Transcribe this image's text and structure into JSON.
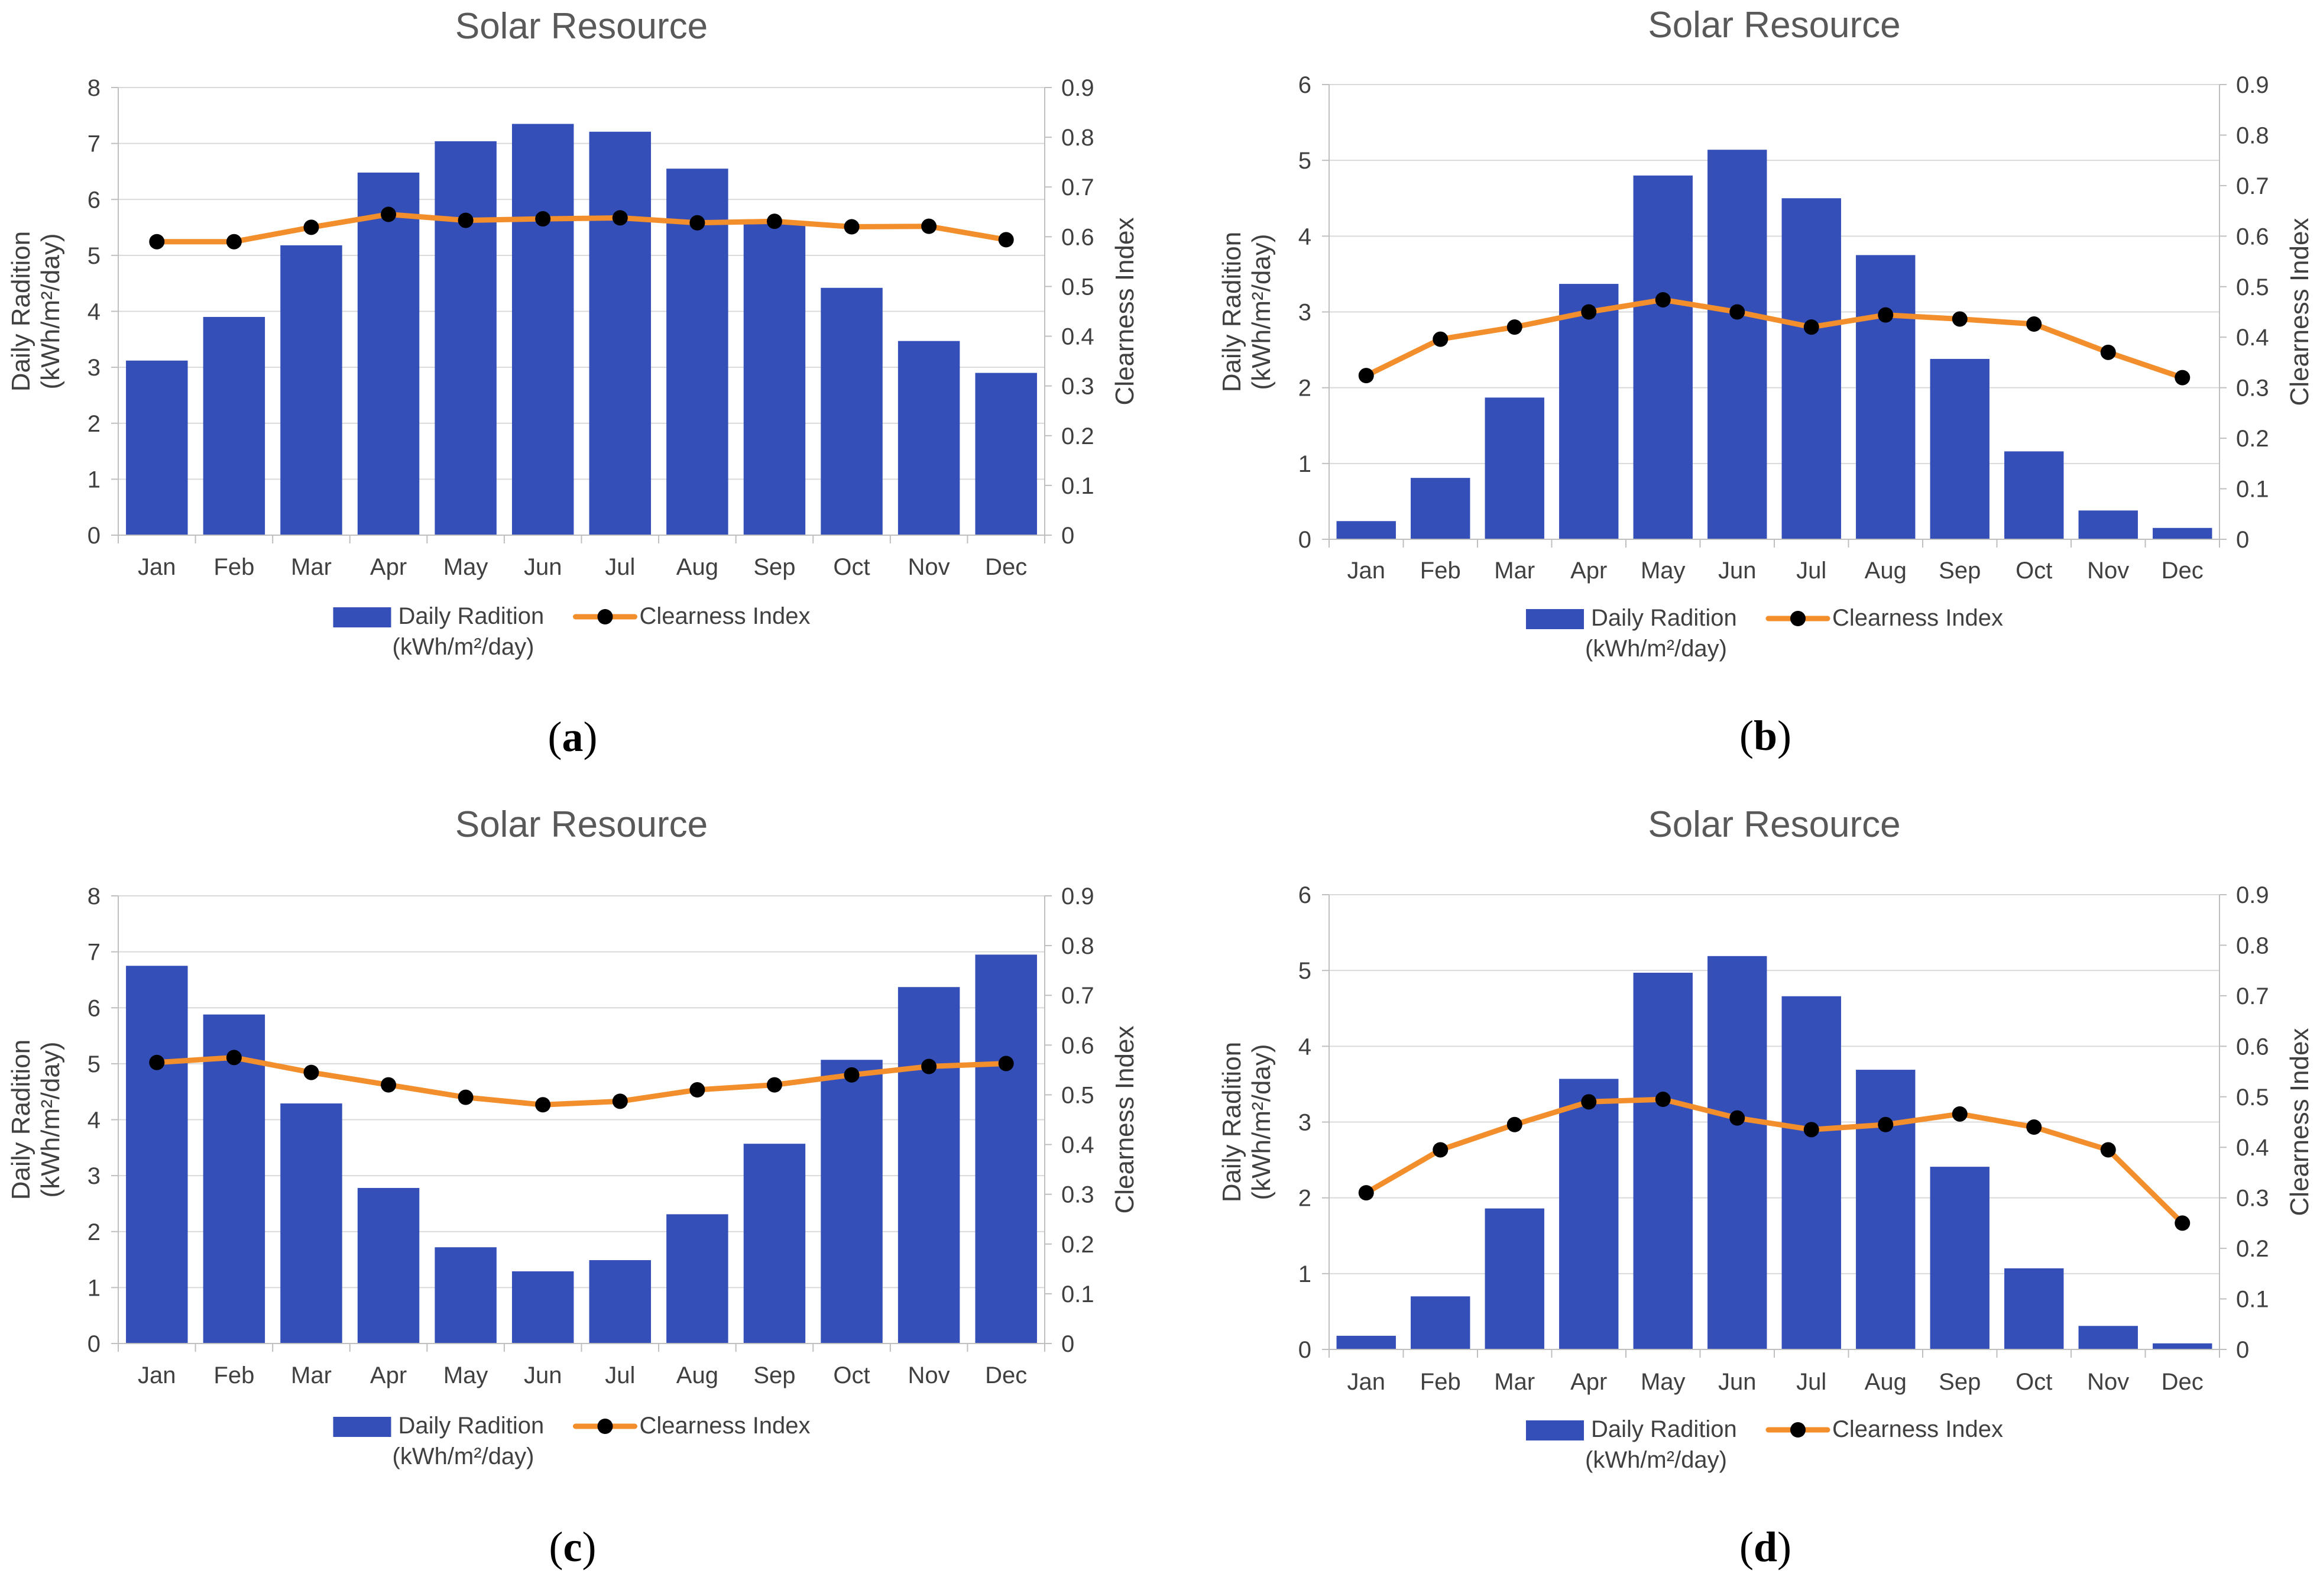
{
  "colors": {
    "bar": "#3450B8",
    "line": "#F28E2B",
    "marker": "#000000",
    "axis": "#BFBFBF",
    "grid": "#D9D9D9",
    "text": "#404040",
    "title": "#595959"
  },
  "chart_data": [
    {
      "panel": "(a)",
      "panel_letter": "a",
      "type": "bar",
      "title": "Solar Resource",
      "ylabel_line1": "Daily Radition",
      "ylabel_line2": "(kWh/m²/day)",
      "y2label": "Clearness Index",
      "ylim": [
        0,
        8
      ],
      "y2lim": [
        0,
        0.9
      ],
      "yticks": [
        "0",
        "1",
        "2",
        "3",
        "4",
        "5",
        "6",
        "7",
        "8"
      ],
      "y2ticks": [
        "0",
        "0.1",
        "0.2",
        "0.3",
        "0.4",
        "0.5",
        "0.6",
        "0.7",
        "0.8",
        "0.9"
      ],
      "categories": [
        "Jan",
        "Feb",
        "Mar",
        "Apr",
        "May",
        "Jun",
        "Jul",
        "Aug",
        "Sep",
        "Oct",
        "Nov",
        "Dec"
      ],
      "series": [
        {
          "name": "Daily Radition (kWh/m²/day)",
          "axis": "left",
          "kind": "bar",
          "values": [
            3.12,
            3.9,
            5.18,
            6.48,
            7.04,
            7.35,
            7.21,
            6.55,
            5.59,
            4.42,
            3.47,
            2.9
          ]
        },
        {
          "name": "Clearness Index",
          "axis": "right",
          "kind": "line",
          "values": [
            0.59,
            0.59,
            0.619,
            0.645,
            0.633,
            0.636,
            0.638,
            0.628,
            0.631,
            0.62,
            0.621,
            0.594
          ]
        }
      ],
      "legend": {
        "bar_line1": "Daily Radition",
        "bar_line2": "(kWh/m²/day)",
        "line": "Clearness Index",
        "position": "bottom"
      }
    },
    {
      "panel": "(b)",
      "panel_letter": "b",
      "type": "bar",
      "title": "Solar Resource",
      "ylabel_line1": "Daily Radition",
      "ylabel_line2": "(kWh/m²/day)",
      "y2label": "Clearness Index",
      "ylim": [
        0,
        6
      ],
      "y2lim": [
        0,
        0.9
      ],
      "yticks": [
        "0",
        "1",
        "2",
        "3",
        "4",
        "5",
        "6"
      ],
      "y2ticks": [
        "0",
        "0.1",
        "0.2",
        "0.3",
        "0.4",
        "0.5",
        "0.6",
        "0.7",
        "0.8",
        "0.9"
      ],
      "categories": [
        "Jan",
        "Feb",
        "Mar",
        "Apr",
        "May",
        "Jun",
        "Jul",
        "Aug",
        "Sep",
        "Oct",
        "Nov",
        "Dec"
      ],
      "series": [
        {
          "name": "Daily Radition (kWh/m²/day)",
          "axis": "left",
          "kind": "bar",
          "values": [
            0.24,
            0.81,
            1.87,
            3.37,
            4.8,
            5.14,
            4.5,
            3.75,
            2.38,
            1.16,
            0.38,
            0.15
          ]
        },
        {
          "name": "Clearness Index",
          "axis": "right",
          "kind": "line",
          "values": [
            0.324,
            0.396,
            0.42,
            0.45,
            0.474,
            0.45,
            0.42,
            0.444,
            0.436,
            0.426,
            0.37,
            0.32
          ]
        }
      ],
      "legend": {
        "bar_line1": "Daily Radition",
        "bar_line2": "(kWh/m²/day)",
        "line": "Clearness Index",
        "position": "bottom"
      }
    },
    {
      "panel": "(c)",
      "panel_letter": "c",
      "type": "bar",
      "title": "Solar Resource",
      "ylabel_line1": "Daily Radition",
      "ylabel_line2": "(kWh/m²/day)",
      "y2label": "Clearness Index",
      "ylim": [
        0,
        8
      ],
      "y2lim": [
        0,
        0.9
      ],
      "yticks": [
        "0",
        "1",
        "2",
        "3",
        "4",
        "5",
        "6",
        "7",
        "8"
      ],
      "y2ticks": [
        "0",
        "0.1",
        "0.2",
        "0.3",
        "0.4",
        "0.5",
        "0.6",
        "0.7",
        "0.8",
        "0.9"
      ],
      "categories": [
        "Jan",
        "Feb",
        "Mar",
        "Apr",
        "May",
        "Jun",
        "Jul",
        "Aug",
        "Sep",
        "Oct",
        "Nov",
        "Dec"
      ],
      "series": [
        {
          "name": "Daily Radition (kWh/m²/day)",
          "axis": "left",
          "kind": "bar",
          "values": [
            6.75,
            5.88,
            4.29,
            2.78,
            1.72,
            1.29,
            1.49,
            2.31,
            3.57,
            5.07,
            6.37,
            6.95
          ]
        },
        {
          "name": "Clearness Index",
          "axis": "right",
          "kind": "line",
          "values": [
            0.565,
            0.575,
            0.545,
            0.52,
            0.495,
            0.48,
            0.487,
            0.51,
            0.52,
            0.54,
            0.557,
            0.563
          ]
        }
      ],
      "legend": {
        "bar_line1": "Daily Radition",
        "bar_line2": "(kWh/m²/day)",
        "line": "Clearness Index",
        "position": "bottom"
      }
    },
    {
      "panel": "(d)",
      "panel_letter": "d",
      "type": "bar",
      "title": "Solar Resource",
      "ylabel_line1": "Daily Radition",
      "ylabel_line2": "(kWh/m²/day)",
      "y2label": "Clearness Index",
      "ylim": [
        0,
        6
      ],
      "y2lim": [
        0,
        0.9
      ],
      "yticks": [
        "0",
        "1",
        "2",
        "3",
        "4",
        "5",
        "6"
      ],
      "y2ticks": [
        "0",
        "0.1",
        "0.2",
        "0.3",
        "0.4",
        "0.5",
        "0.6",
        "0.7",
        "0.8",
        "0.9"
      ],
      "categories": [
        "Jan",
        "Feb",
        "Mar",
        "Apr",
        "May",
        "Jun",
        "Jul",
        "Aug",
        "Sep",
        "Oct",
        "Nov",
        "Dec"
      ],
      "series": [
        {
          "name": "Daily Radition (kWh/m²/day)",
          "axis": "left",
          "kind": "bar",
          "values": [
            0.18,
            0.7,
            1.86,
            3.57,
            4.97,
            5.19,
            4.66,
            3.69,
            2.41,
            1.07,
            0.31,
            0.08
          ]
        },
        {
          "name": "Clearness Index",
          "axis": "right",
          "kind": "line",
          "values": [
            0.31,
            0.395,
            0.445,
            0.49,
            0.495,
            0.458,
            0.435,
            0.445,
            0.466,
            0.44,
            0.395,
            0.25
          ]
        }
      ],
      "legend": {
        "bar_line1": "Daily Radition",
        "bar_line2": "(kWh/m²/day)",
        "line": "Clearness Index",
        "position": "bottom"
      }
    }
  ]
}
